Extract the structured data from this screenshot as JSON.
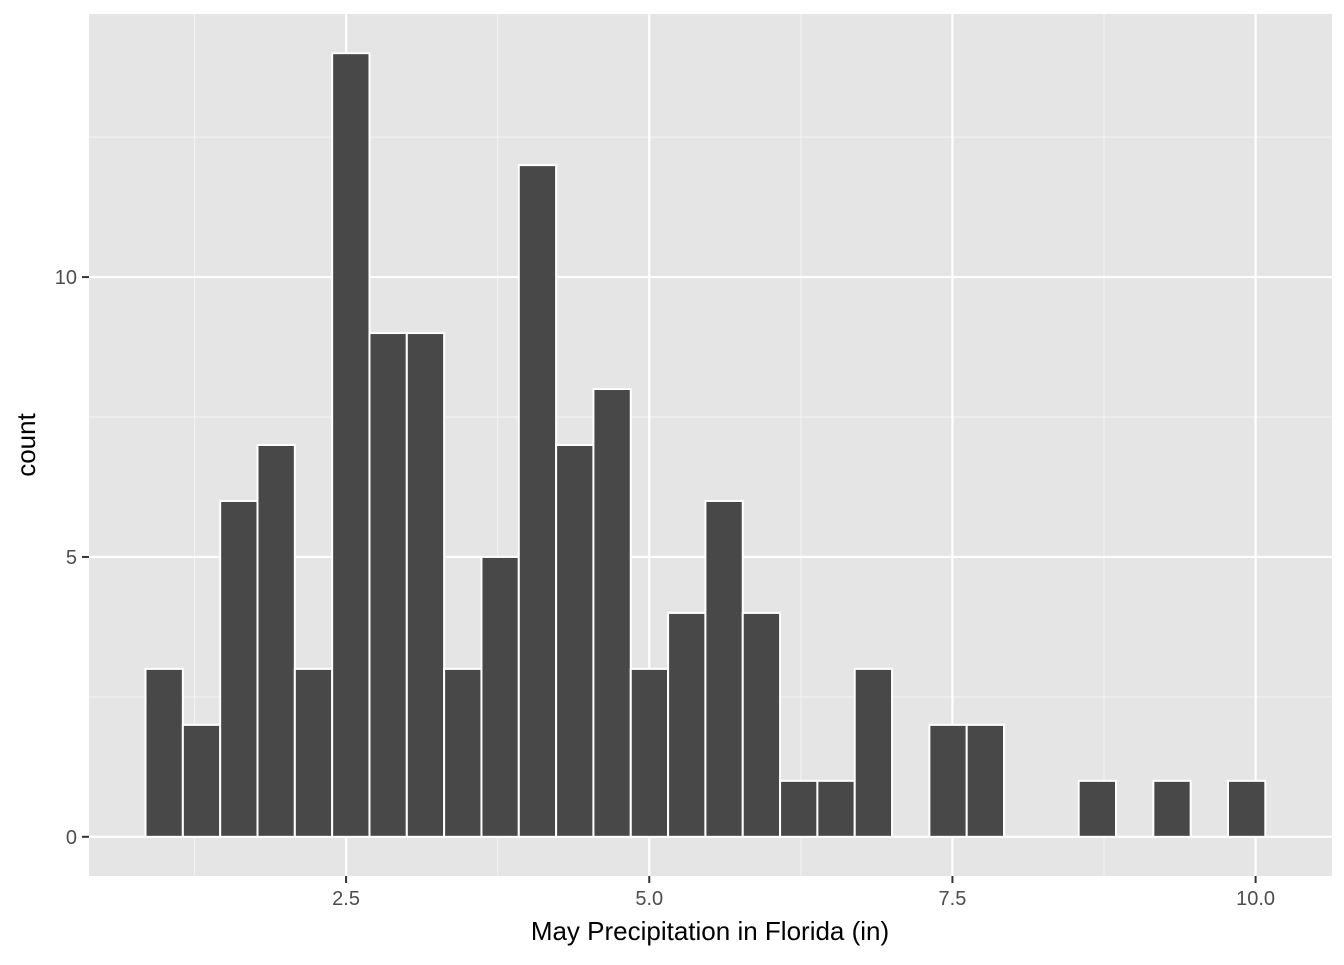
{
  "chart_data": {
    "type": "bar",
    "subtype": "histogram",
    "title": "",
    "xlabel": "May Precipitation in Florida (in)",
    "ylabel": "count",
    "bin_width": 0.3078,
    "x_bin_centers": [
      1.0,
      1.3078,
      1.6156,
      1.9234,
      2.2312,
      2.539,
      2.8468,
      3.1546,
      3.4624,
      3.7702,
      4.078,
      4.3858,
      4.6936,
      5.0014,
      5.3092,
      5.617,
      5.9248,
      6.2326,
      6.5404,
      6.8482,
      7.156,
      7.4638,
      7.7716,
      8.0794,
      8.3872,
      8.695,
      9.0028,
      9.3106,
      9.6184,
      9.9262
    ],
    "values": [
      3,
      2,
      6,
      7,
      3,
      14,
      9,
      9,
      3,
      5,
      12,
      7,
      8,
      3,
      4,
      6,
      4,
      1,
      1,
      3,
      0,
      2,
      2,
      0,
      0,
      1,
      0,
      1,
      0,
      1
    ],
    "xlim": [
      0.38,
      10.63
    ],
    "ylim": [
      -0.7,
      14.7
    ],
    "x_ticks": [
      2.5,
      5.0,
      7.5,
      10.0
    ],
    "x_tick_labels": [
      "2.5",
      "5.0",
      "7.5",
      "10.0"
    ],
    "x_minor_ticks": [
      1.25,
      3.75,
      6.25,
      8.75
    ],
    "y_ticks": [
      0,
      5,
      10
    ],
    "y_tick_labels": [
      "0",
      "5",
      "10"
    ],
    "y_minor_ticks": [
      2.5,
      7.5,
      12.5
    ],
    "grid": true,
    "legend": "none",
    "colors": {
      "bar_fill": "#484848",
      "bar_outline": "#ffffff",
      "panel_background": "#e5e5e5",
      "grid_major": "#ffffff",
      "grid_minor": "#f2f2f2",
      "tick_mark": "#333333"
    }
  }
}
